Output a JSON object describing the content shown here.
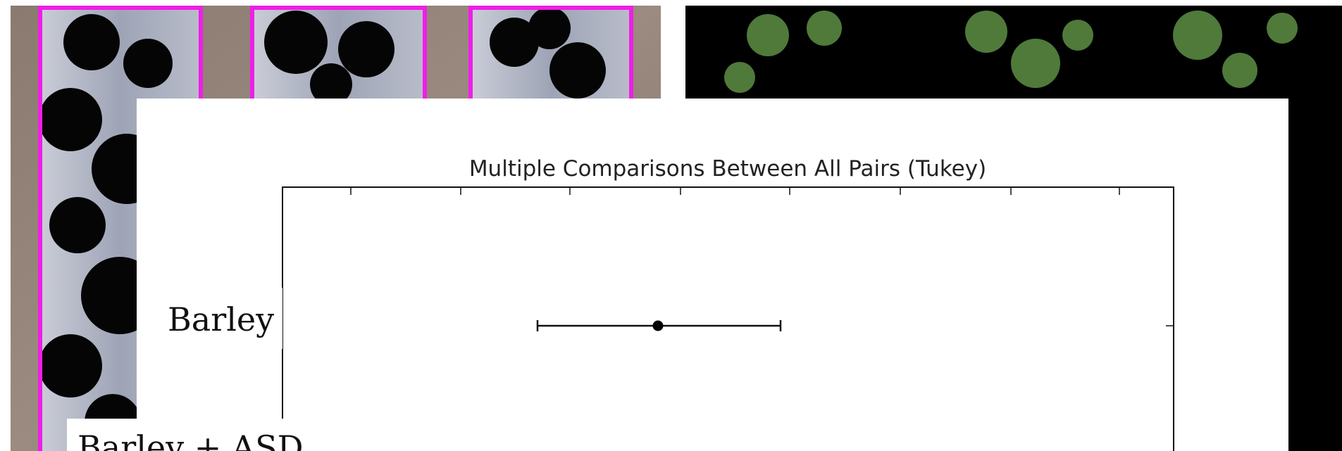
{
  "chart_title": "Multiple Comparisons Between All Pairs (Tukey)",
  "row_labels": [
    "Barley",
    "Barley + ASD"
  ]
}
